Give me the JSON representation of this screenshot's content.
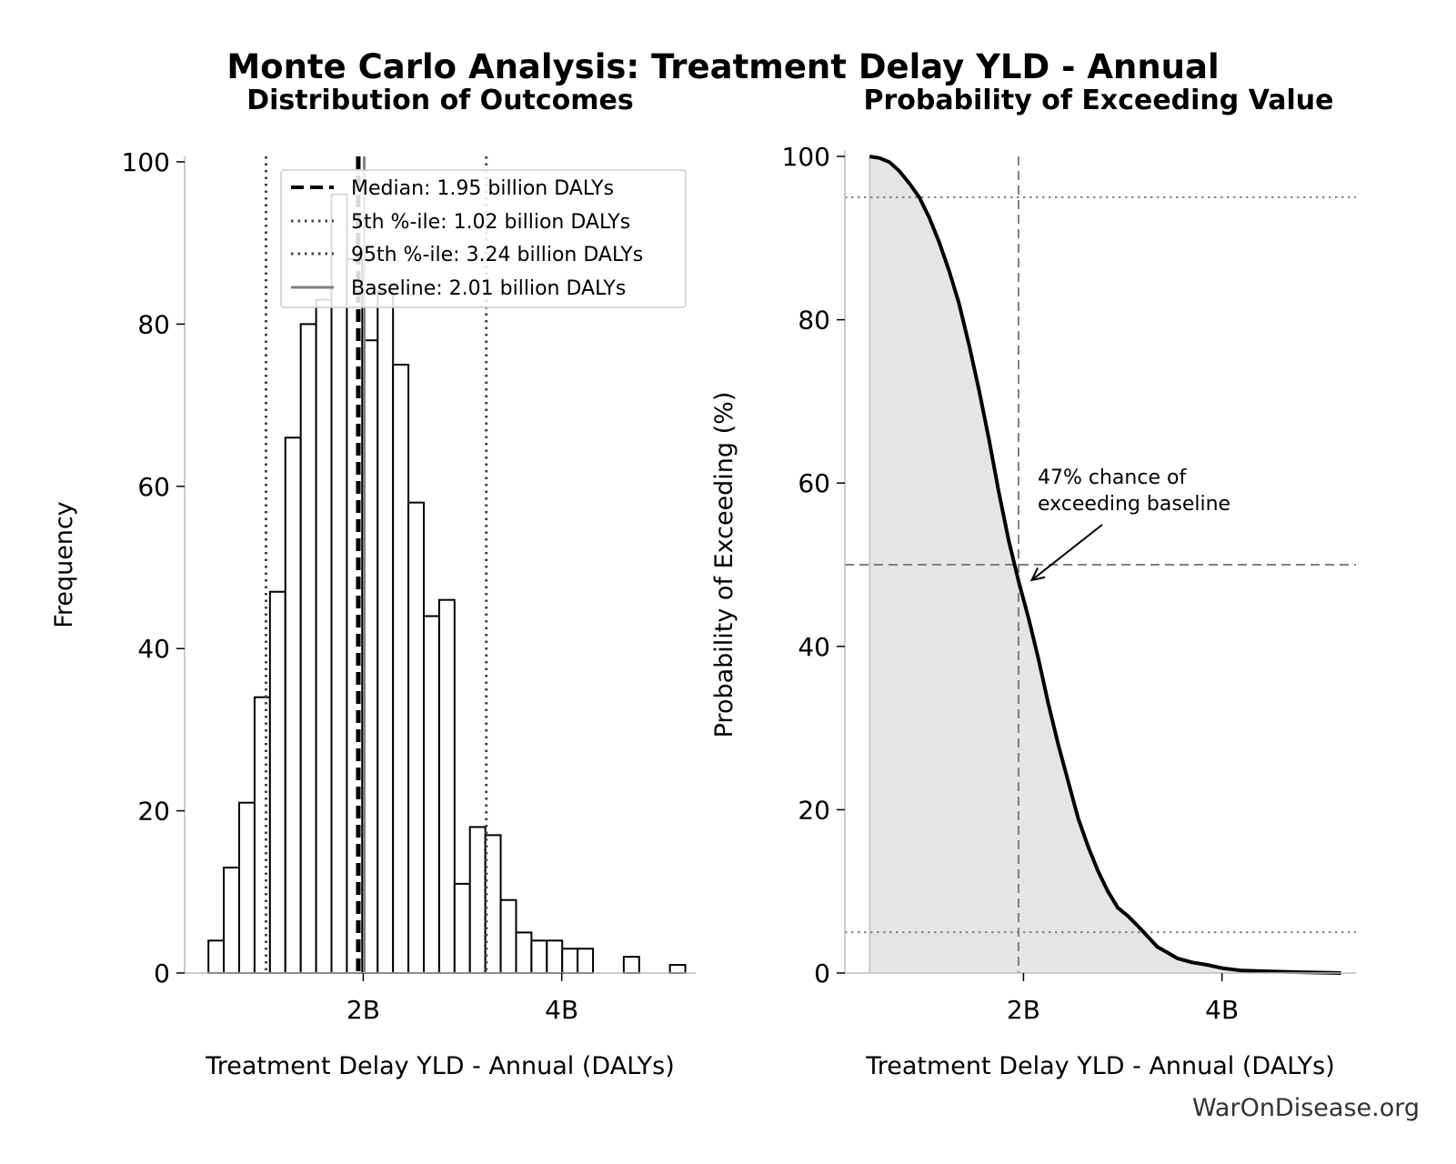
{
  "title": "Monte Carlo Analysis: Treatment Delay YLD - Annual",
  "footer": "WarOnDisease.org",
  "chart_data": [
    {
      "type": "bar",
      "subtitle": "Distribution of Outcomes",
      "xlabel": "Treatment Delay YLD - Annual (DALYs)",
      "ylabel": "Frequency",
      "xlim": [
        0.2,
        5.35
      ],
      "ylim": [
        0,
        100
      ],
      "xticks": [
        {
          "value": 2,
          "label": "2B"
        },
        {
          "value": 4,
          "label": "4B"
        }
      ],
      "yticks": [
        0,
        20,
        40,
        60,
        80,
        100
      ],
      "grid": false,
      "legend_placement": "top-right",
      "bin_width": 0.155,
      "bins": [
        {
          "start": 0.44,
          "count": 4
        },
        {
          "start": 0.595,
          "count": 13
        },
        {
          "start": 0.75,
          "count": 21
        },
        {
          "start": 0.905,
          "count": 34
        },
        {
          "start": 1.06,
          "count": 47
        },
        {
          "start": 1.215,
          "count": 66
        },
        {
          "start": 1.37,
          "count": 80
        },
        {
          "start": 1.525,
          "count": 83
        },
        {
          "start": 1.68,
          "count": 96
        },
        {
          "start": 1.835,
          "count": 88
        },
        {
          "start": 1.99,
          "count": 78
        },
        {
          "start": 2.145,
          "count": 84
        },
        {
          "start": 2.3,
          "count": 75
        },
        {
          "start": 2.455,
          "count": 58
        },
        {
          "start": 2.61,
          "count": 44
        },
        {
          "start": 2.765,
          "count": 46
        },
        {
          "start": 2.92,
          "count": 11
        },
        {
          "start": 3.075,
          "count": 18
        },
        {
          "start": 3.23,
          "count": 17
        },
        {
          "start": 3.385,
          "count": 9
        },
        {
          "start": 3.54,
          "count": 5
        },
        {
          "start": 3.695,
          "count": 4
        },
        {
          "start": 3.85,
          "count": 4
        },
        {
          "start": 4.005,
          "count": 3
        },
        {
          "start": 4.16,
          "count": 3
        },
        {
          "start": 4.315,
          "count": 0
        },
        {
          "start": 4.47,
          "count": 0
        },
        {
          "start": 4.625,
          "count": 2
        },
        {
          "start": 4.78,
          "count": 0
        },
        {
          "start": 4.935,
          "count": 0
        },
        {
          "start": 5.09,
          "count": 1
        }
      ],
      "reference_lines": [
        {
          "value": 1.95,
          "style": "dashed",
          "color": "#000000",
          "label": "Median: 1.95 billion DALYs"
        },
        {
          "value": 1.02,
          "style": "dotted",
          "color": "#444444",
          "label": "5th %-ile: 1.02 billion DALYs"
        },
        {
          "value": 3.24,
          "style": "dotted",
          "color": "#444444",
          "label": "95th %-ile: 3.24 billion DALYs"
        },
        {
          "value": 2.01,
          "style": "solid",
          "color": "#808080",
          "label": "Baseline: 2.01 billion DALYs"
        }
      ]
    },
    {
      "type": "area",
      "subtitle": "Probability of Exceeding Value",
      "xlabel": "Treatment Delay YLD - Annual (DALYs)",
      "ylabel": "Probability of Exceeding (%)",
      "xlim": [
        0.2,
        5.35
      ],
      "ylim": [
        0,
        100
      ],
      "xticks": [
        {
          "value": 2,
          "label": "2B"
        },
        {
          "value": 4,
          "label": "4B"
        }
      ],
      "yticks": [
        0,
        20,
        40,
        60,
        80,
        100
      ],
      "grid": false,
      "curve": [
        [
          0.45,
          100
        ],
        [
          0.55,
          99.8
        ],
        [
          0.65,
          99.3
        ],
        [
          0.75,
          98.2
        ],
        [
          0.85,
          96.7
        ],
        [
          0.95,
          95.0
        ],
        [
          1.05,
          92.5
        ],
        [
          1.15,
          89.5
        ],
        [
          1.25,
          86.0
        ],
        [
          1.35,
          82.0
        ],
        [
          1.45,
          77.0
        ],
        [
          1.55,
          71.5
        ],
        [
          1.65,
          65.5
        ],
        [
          1.75,
          59.0
        ],
        [
          1.85,
          53.0
        ],
        [
          1.95,
          48.0
        ],
        [
          2.05,
          43.5
        ],
        [
          2.15,
          38.5
        ],
        [
          2.25,
          33.0
        ],
        [
          2.35,
          28.0
        ],
        [
          2.45,
          23.5
        ],
        [
          2.55,
          19.0
        ],
        [
          2.65,
          15.5
        ],
        [
          2.75,
          12.5
        ],
        [
          2.85,
          10.0
        ],
        [
          2.95,
          8.0
        ],
        [
          3.05,
          7.0
        ],
        [
          3.15,
          5.8
        ],
        [
          3.25,
          4.5
        ],
        [
          3.35,
          3.2
        ],
        [
          3.45,
          2.5
        ],
        [
          3.55,
          1.8
        ],
        [
          3.7,
          1.3
        ],
        [
          3.85,
          1.0
        ],
        [
          4.0,
          0.6
        ],
        [
          4.2,
          0.3
        ],
        [
          4.5,
          0.2
        ],
        [
          4.8,
          0.1
        ],
        [
          5.2,
          0.0
        ]
      ],
      "reference_lines": [
        {
          "axis": "x",
          "value": 1.95,
          "style": "dashed",
          "color": "#808080"
        },
        {
          "axis": "y",
          "value": 50,
          "style": "dashed",
          "color": "#808080"
        },
        {
          "axis": "y",
          "value": 95,
          "style": "dotted",
          "color": "#808080"
        },
        {
          "axis": "y",
          "value": 5,
          "style": "dotted",
          "color": "#808080"
        }
      ],
      "annotation": {
        "text_lines": [
          "47% chance of",
          "exceeding baseline"
        ],
        "point": [
          2.01,
          47
        ]
      }
    }
  ]
}
